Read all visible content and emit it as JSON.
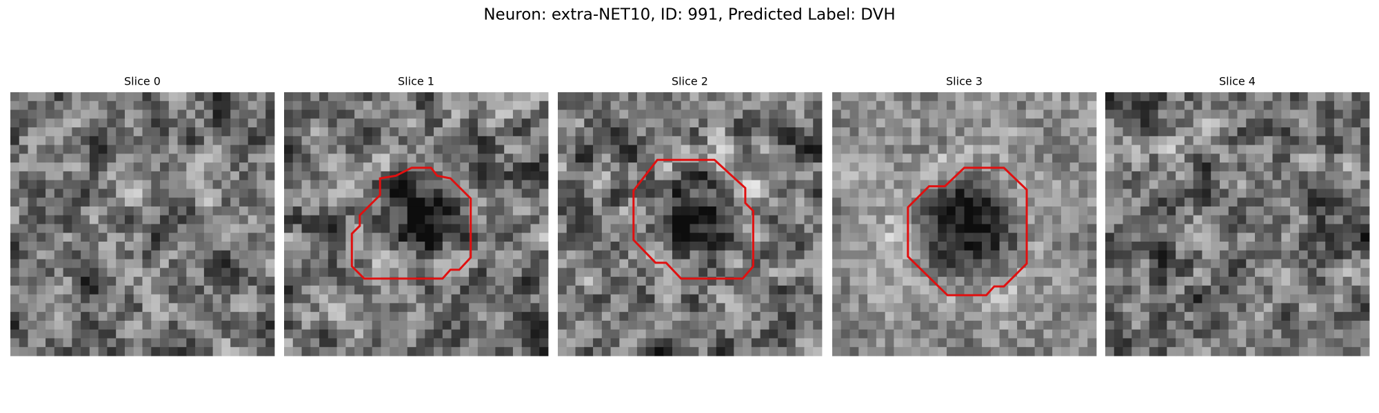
{
  "title": "Neuron: extra-NET10, ID: 991, Predicted Label: DVH",
  "panels": [
    {
      "title": "Slice 0"
    },
    {
      "title": "Slice 1"
    },
    {
      "title": "Slice 2"
    },
    {
      "title": "Slice 3"
    },
    {
      "title": "Slice 4"
    }
  ]
}
